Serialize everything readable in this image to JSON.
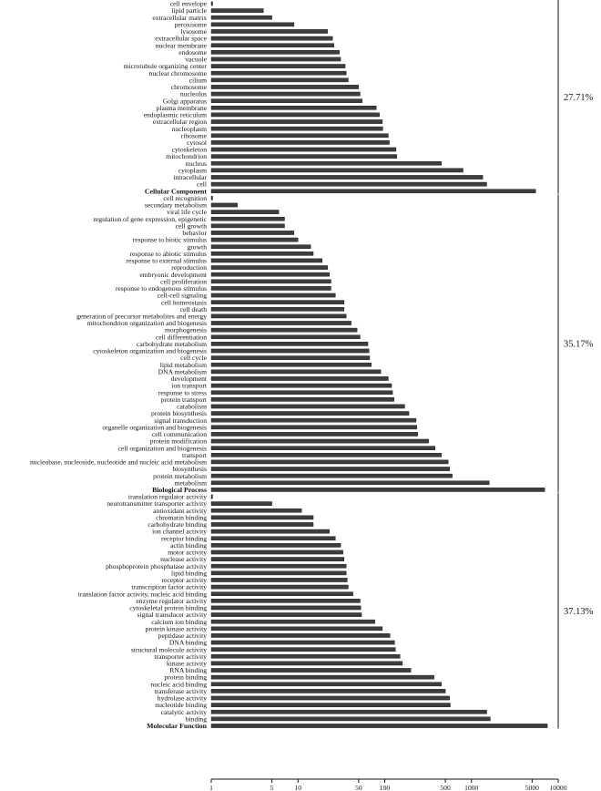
{
  "chart_data": {
    "type": "bar",
    "orientation": "horizontal",
    "x_scale": "log",
    "xlim": [
      1,
      10000
    ],
    "x_ticks": [
      1,
      5,
      10,
      50,
      100,
      500,
      1000,
      5000,
      10000
    ],
    "x_tick_labels": [
      "1",
      "5",
      "10",
      "50",
      "100",
      "500",
      "1000",
      "5000",
      "10000"
    ],
    "grid": false,
    "legend": "none",
    "bar_color": "#3d3d3d",
    "groups": [
      {
        "name": "Cellular Component",
        "percent": "27.71%",
        "total": 5500,
        "categories": [
          "cell envelope",
          "lipid particle",
          "extracellular matrix",
          "peroxisome",
          "lysosome",
          "extracellular space",
          "nuclear membrane",
          "endosome",
          "vacuole",
          "microtubule organizing center",
          "nuclear chromosome",
          "cilium",
          "chromosome",
          "nucleolus",
          "Golgi apparatus",
          "plasma membrane",
          "endoplasmic reticulum",
          "extracellular region",
          "nucleoplasm",
          "ribosome",
          "cytosol",
          "cytoskeleton",
          "mitochondrion",
          "nucleus",
          "cytoplasm",
          "intracellular",
          "cell"
        ],
        "values": [
          1,
          4,
          5,
          9,
          22,
          25,
          26,
          30,
          31,
          35,
          36,
          38,
          50,
          52,
          55,
          80,
          87,
          94,
          95,
          110,
          113,
          135,
          138,
          450,
          800,
          1350,
          1500
        ]
      },
      {
        "name": "Biological Process",
        "percent": "35.17%",
        "total": 7000,
        "categories": [
          "cell recognition",
          "secondary metabolism",
          "viral life cycle",
          "regulation of gene expression, epigenetic",
          "cell growth",
          "behavior",
          "response to biotic stimulus",
          "growth",
          "response to abiotic stimulus",
          "response to external stimulus",
          "reproduction",
          "embryonic development",
          "cell proliferation",
          "response to endogenous stimulus",
          "cell-cell signaling",
          "cell homeostasis",
          "cell death",
          "generation of precursor metabolites and energy",
          "mitochondrion organization and biogenesis",
          "morphogenesis",
          "cell differentiation",
          "carbohydrate metabolism",
          "cytoskeleton organization and biogenesis",
          "cell cycle",
          "lipid metabolism",
          "DNA metabolism",
          "development",
          "ion transport",
          "response to stress",
          "protein transport",
          "catabolism",
          "protein biosynthesis",
          "signal transduction",
          "organelle organization and biogenesis",
          "cell communication",
          "protein modification",
          "cell organization and biogenesis",
          "transport",
          "nucleobase, nucleoside, nucleotide and nucleic acid metabolism",
          "biosynthesis",
          "protein metabolism",
          "metabolism"
        ],
        "values": [
          1,
          2,
          6,
          7,
          7,
          9,
          10,
          14,
          15,
          19,
          22,
          23,
          24,
          24,
          27,
          34,
          34,
          36,
          41,
          48,
          52,
          64,
          66,
          67,
          70,
          90,
          110,
          120,
          123,
          128,
          170,
          190,
          230,
          235,
          240,
          320,
          380,
          450,
          540,
          560,
          600,
          1600
        ]
      },
      {
        "name": "Molecular Function",
        "percent": "37.13%",
        "total": 7500,
        "categories": [
          "translation regulator activity",
          "neurotransmitter transporter activity",
          "antioxidant activity",
          "chromatin binding",
          "carbohydrate binding",
          "ion channel activity",
          "receptor binding",
          "actin binding",
          "motor activity",
          "nuclease activity",
          "phosphoprotein phosphatase activity",
          "lipid binding",
          "receptor activity",
          "transcription factor activity",
          "translation factor activity, nucleic acid binding",
          "enzyme regulator activity",
          "cytoskeletal protein binding",
          "signal transducer activity",
          "calcium ion binding",
          "protein kinase activity",
          "peptidase activity",
          "DNA binding",
          "structural molecule activity",
          "transporter activity",
          "kinase activity",
          "RNA binding",
          "protein binding",
          "nucleic acid binding",
          "transferase activity",
          "hydrolase activity",
          "nucleotide binding",
          "catalytic activity",
          "binding"
        ],
        "values": [
          1,
          5,
          11,
          15,
          15,
          23,
          27,
          31,
          33,
          34,
          36,
          36,
          37,
          38,
          43,
          52,
          53,
          54,
          77,
          94,
          115,
          130,
          133,
          150,
          160,
          200,
          370,
          450,
          500,
          560,
          570,
          1500,
          1650
        ]
      }
    ]
  }
}
